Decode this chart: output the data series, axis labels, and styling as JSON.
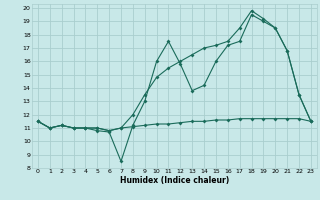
{
  "title": "",
  "xlabel": "Humidex (Indice chaleur)",
  "bg_color": "#c8e8e8",
  "grid_color": "#aacece",
  "line_color": "#1a6b5a",
  "xlim": [
    -0.5,
    23.5
  ],
  "ylim": [
    8,
    20.3
  ],
  "xticks": [
    0,
    1,
    2,
    3,
    4,
    5,
    6,
    7,
    8,
    9,
    10,
    11,
    12,
    13,
    14,
    15,
    16,
    17,
    18,
    19,
    20,
    21,
    22,
    23
  ],
  "yticks": [
    8,
    9,
    10,
    11,
    12,
    13,
    14,
    15,
    16,
    17,
    18,
    19,
    20
  ],
  "line1_x": [
    0,
    1,
    2,
    3,
    4,
    5,
    6,
    7,
    8,
    9,
    10,
    11,
    12,
    13,
    14,
    15,
    16,
    17,
    18,
    19,
    20,
    21,
    22,
    23
  ],
  "line1_y": [
    11.5,
    11.0,
    11.2,
    11.0,
    11.0,
    11.0,
    10.8,
    11.0,
    11.1,
    11.2,
    11.3,
    11.3,
    11.4,
    11.5,
    11.5,
    11.6,
    11.6,
    11.7,
    11.7,
    11.7,
    11.7,
    11.7,
    11.7,
    11.5
  ],
  "line2_x": [
    0,
    1,
    2,
    3,
    4,
    5,
    6,
    7,
    8,
    9,
    10,
    11,
    12,
    13,
    14,
    15,
    16,
    17,
    18,
    19,
    20,
    21,
    22,
    23
  ],
  "line2_y": [
    11.5,
    11.0,
    11.2,
    11.0,
    11.0,
    10.8,
    10.7,
    8.5,
    11.2,
    13.0,
    16.0,
    17.5,
    15.8,
    13.8,
    14.2,
    16.0,
    17.2,
    17.5,
    19.5,
    19.0,
    18.5,
    16.8,
    13.5,
    11.5
  ],
  "line3_x": [
    0,
    1,
    2,
    3,
    4,
    5,
    6,
    7,
    8,
    9,
    10,
    11,
    12,
    13,
    14,
    15,
    16,
    17,
    18,
    19,
    20,
    21,
    22,
    23
  ],
  "line3_y": [
    11.5,
    11.0,
    11.2,
    11.0,
    11.0,
    11.0,
    10.8,
    11.0,
    12.0,
    13.5,
    14.8,
    15.5,
    16.0,
    16.5,
    17.0,
    17.2,
    17.5,
    18.5,
    19.8,
    19.2,
    18.5,
    16.8,
    13.5,
    11.5
  ]
}
